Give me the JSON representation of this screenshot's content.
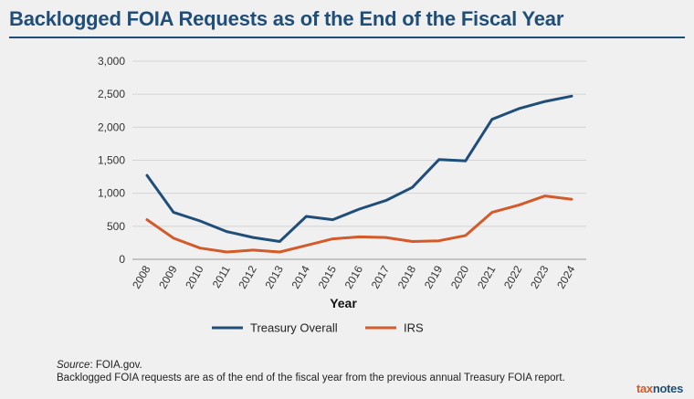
{
  "header": {
    "title": "Backlogged FOIA Requests as of the End of the Fiscal Year"
  },
  "chart_data": {
    "type": "line",
    "title": "Backlogged FOIA Requests as of the End of the Fiscal Year",
    "xlabel": "Year",
    "ylabel": "",
    "categories": [
      "2008",
      "2009",
      "2010",
      "2011",
      "2012",
      "2013",
      "2014",
      "2015",
      "2016",
      "2017",
      "2018",
      "2019",
      "2020",
      "2021",
      "2022",
      "2023",
      "2024"
    ],
    "ylim": [
      0,
      3000
    ],
    "yticks": [
      0,
      500,
      1000,
      1500,
      2000,
      2500,
      3000
    ],
    "ytick_labels": [
      "0",
      "500",
      "1,000",
      "1,500",
      "2,000",
      "2,500",
      "3,000"
    ],
    "grid": true,
    "legend_position": "bottom",
    "series": [
      {
        "name": "Treasury Overall",
        "color": "#1f4e79",
        "values": [
          1270,
          710,
          580,
          420,
          330,
          270,
          650,
          600,
          760,
          890,
          1090,
          1510,
          1490,
          2120,
          2280,
          2390,
          2470
        ]
      },
      {
        "name": "IRS",
        "color": "#d35a2a",
        "values": [
          600,
          320,
          170,
          110,
          140,
          110,
          210,
          310,
          340,
          330,
          270,
          280,
          360,
          710,
          820,
          960,
          910
        ]
      }
    ]
  },
  "footer": {
    "source_label": "Source",
    "source_text": ": FOIA.gov.",
    "note": "Backlogged FOIA requests are as of the end of the fiscal year from the previous annual Treasury FOIA report."
  },
  "brand": {
    "part1": "tax",
    "part2": "notes"
  }
}
